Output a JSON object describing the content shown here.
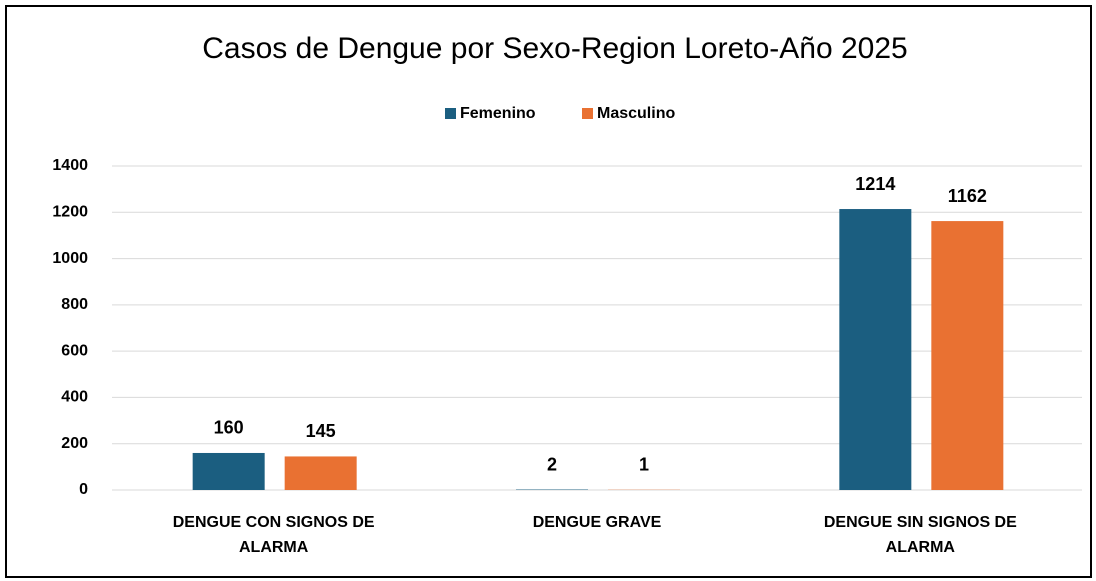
{
  "chart_data": {
    "type": "bar",
    "title": "Casos de Dengue por Sexo-Region Loreto-Año 2025",
    "categories": [
      "DENGUE CON SIGNOS DE ALARMA",
      "DENGUE GRAVE",
      "DENGUE SIN SIGNOS DE ALARMA"
    ],
    "series": [
      {
        "name": "Femenino",
        "color": "#1b5e80",
        "values": [
          160,
          2,
          1214
        ]
      },
      {
        "name": "Masculino",
        "color": "#e97132",
        "values": [
          145,
          1,
          1162
        ]
      }
    ],
    "ylim": [
      0,
      1400
    ],
    "yticks": [
      0,
      200,
      400,
      600,
      800,
      1000,
      1200,
      1400
    ],
    "grid": true,
    "legend": "top"
  }
}
